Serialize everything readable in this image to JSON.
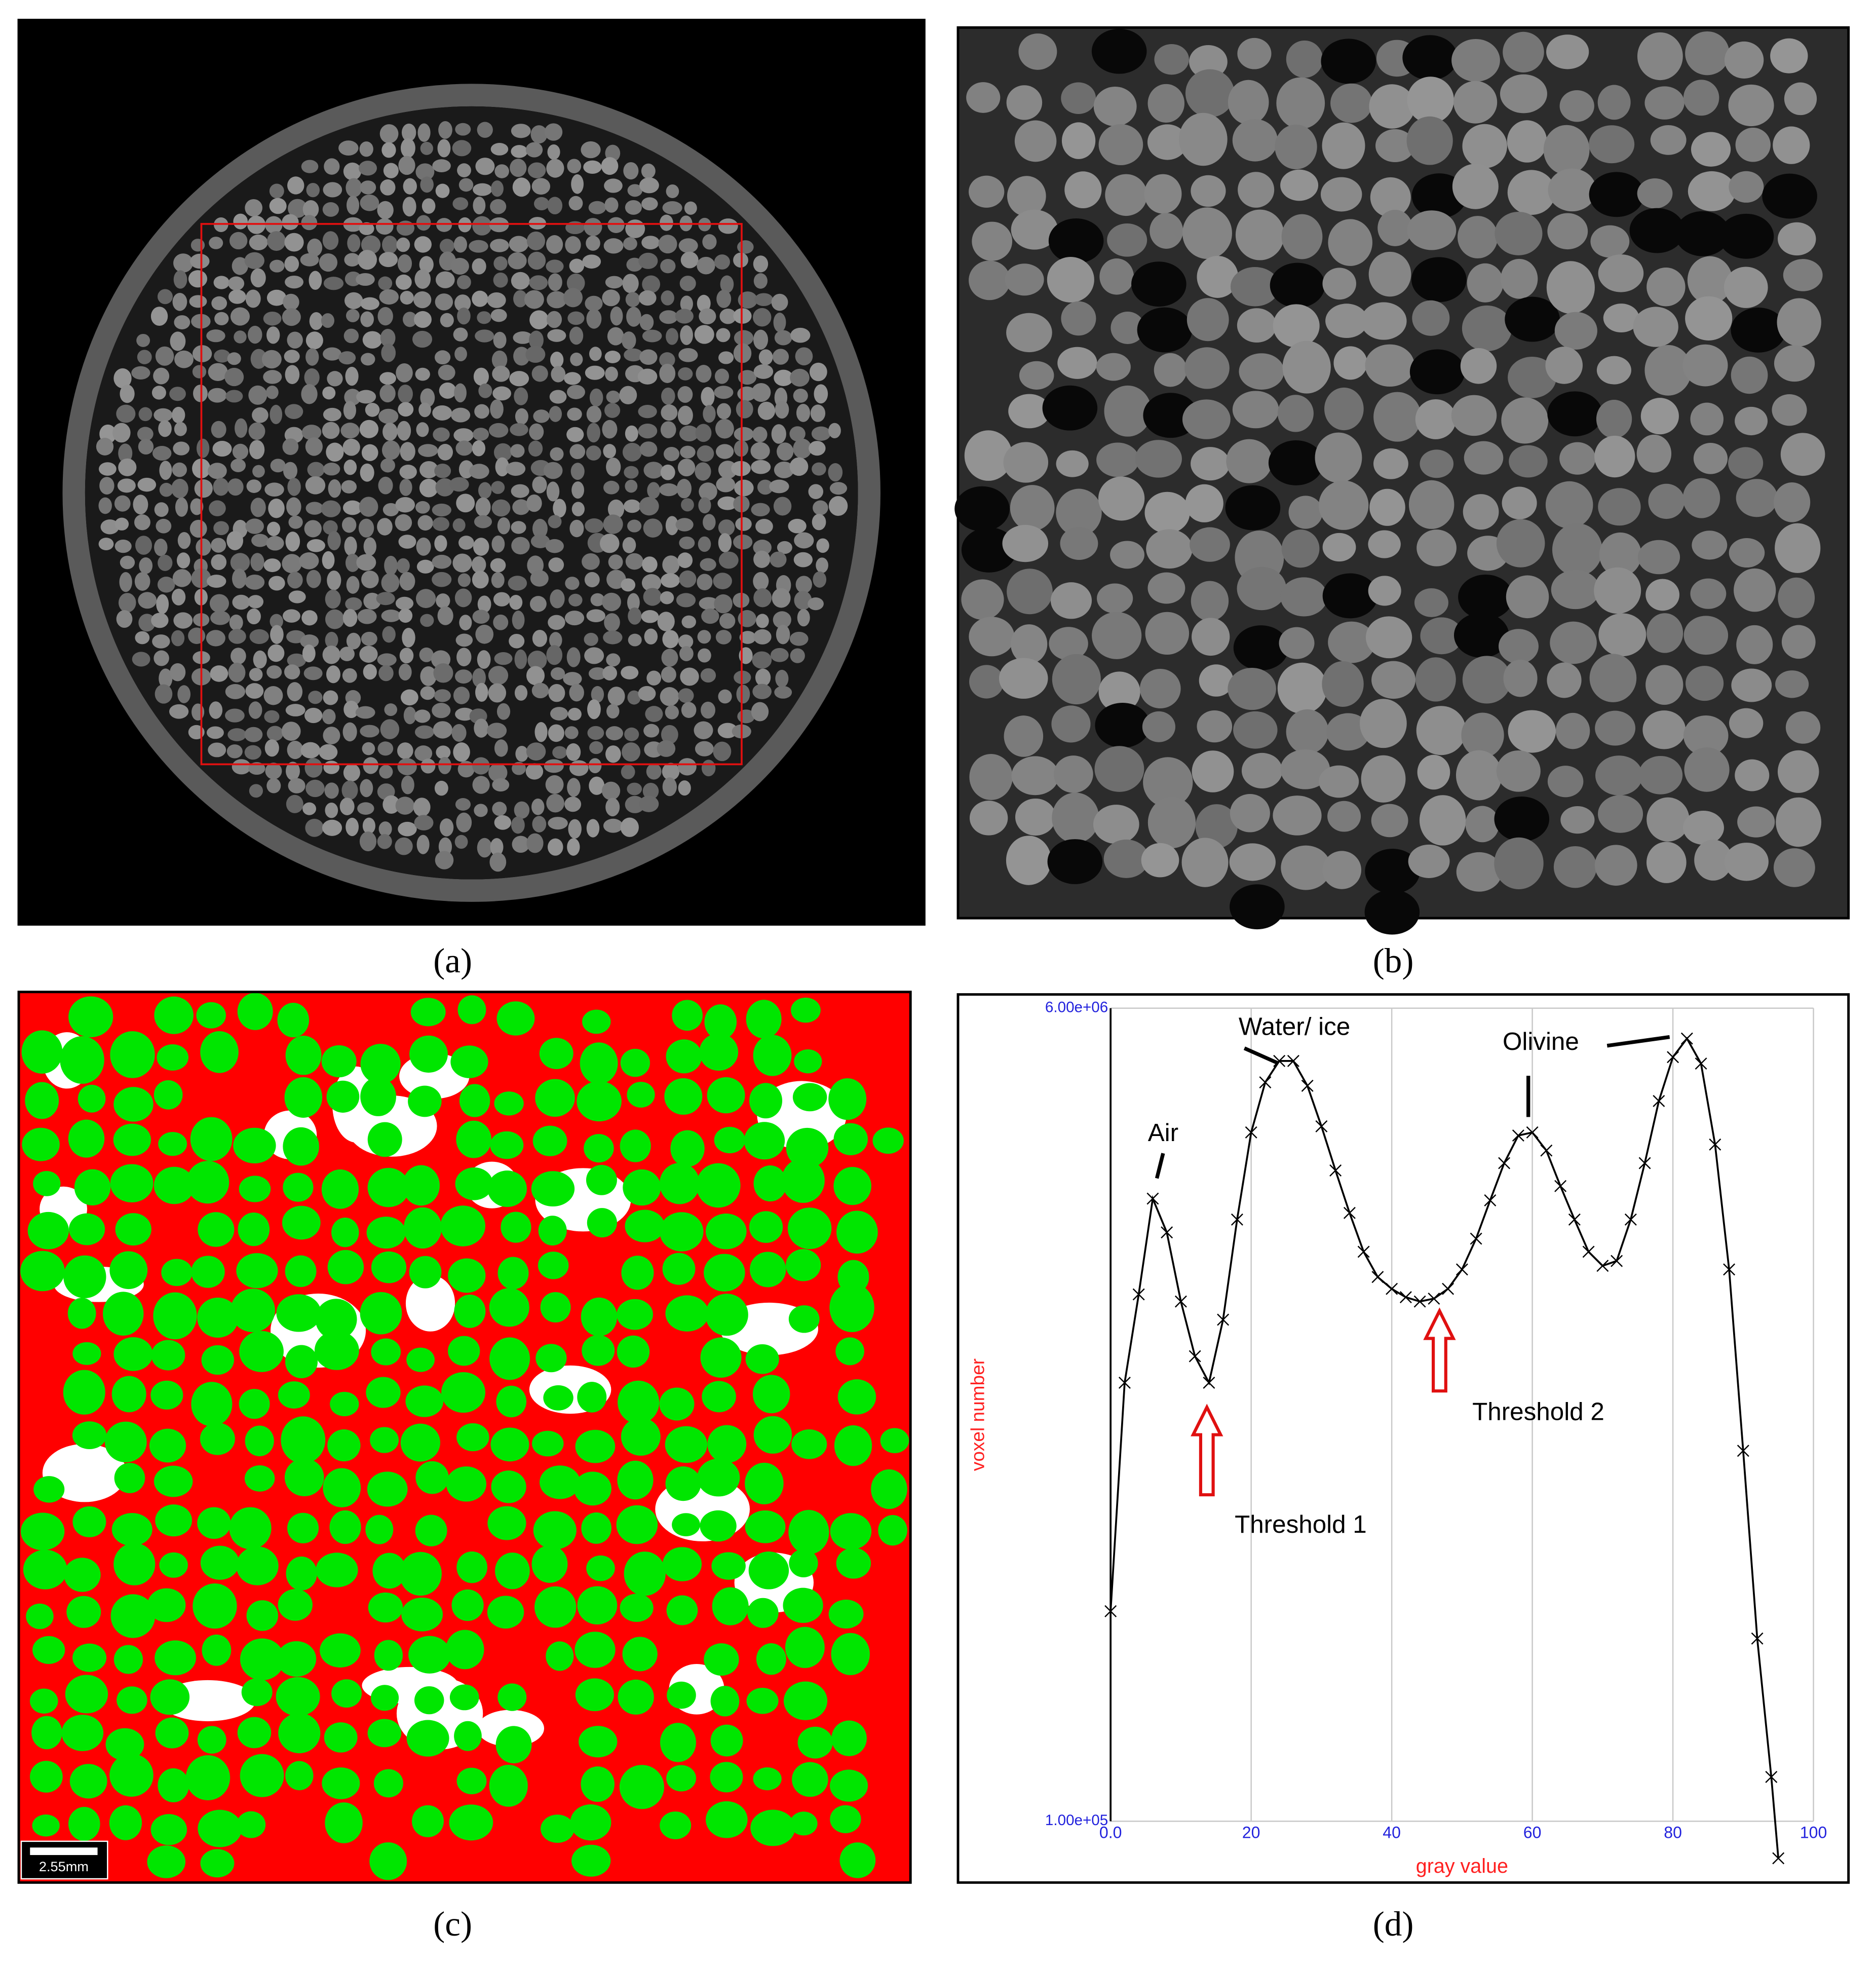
{
  "panel_labels": [
    "(a)",
    "(b)",
    "(c)",
    "(d)"
  ],
  "scale_bar": "2.55mm",
  "chart_data": {
    "type": "line",
    "log_y": true,
    "grid": true,
    "color": "#000000",
    "x_label": "gray value",
    "y_label": "voxel number",
    "annotations": [
      "Air",
      "Water/ ice",
      "Olivine",
      "Threshold 1",
      "Threshold 2"
    ],
    "x": [
      0,
      2,
      4,
      6,
      8,
      10,
      12,
      14,
      16,
      18,
      20,
      22,
      24,
      26,
      28,
      30,
      32,
      34,
      36,
      38,
      40,
      42,
      44,
      46,
      48,
      50,
      52,
      54,
      56,
      58,
      60,
      62,
      64,
      66,
      68,
      70,
      72,
      74,
      76,
      78,
      80,
      82,
      84,
      86,
      88,
      90,
      92,
      94,
      95
    ],
    "values": [
      288000,
      910000,
      1420000,
      2300000,
      1940000,
      1370000,
      1040000,
      910000,
      1250000,
      2070000,
      3210000,
      4130000,
      4600000,
      4600000,
      4060000,
      3310000,
      2650000,
      2140000,
      1760000,
      1550000,
      1460000,
      1400000,
      1370000,
      1390000,
      1460000,
      1610000,
      1880000,
      2280000,
      2750000,
      3160000,
      3210000,
      2930000,
      2450000,
      2070000,
      1760000,
      1640000,
      1680000,
      2070000,
      2750000,
      3760000,
      4690000,
      5150000,
      4540000,
      3020000,
      1610000,
      646000,
      251000,
      125000,
      83000
    ],
    "xlim": [
      0,
      100
    ],
    "xticks": [
      {
        "value": 0,
        "label": "0.0"
      },
      20,
      40,
      60,
      80,
      100
    ],
    "ylim": [
      100000,
      6000000
    ],
    "yticks": [
      {
        "value": 100000,
        "label": "1.00e+05"
      },
      {
        "value": 6000000,
        "label": "6.00e+06"
      }
    ]
  }
}
